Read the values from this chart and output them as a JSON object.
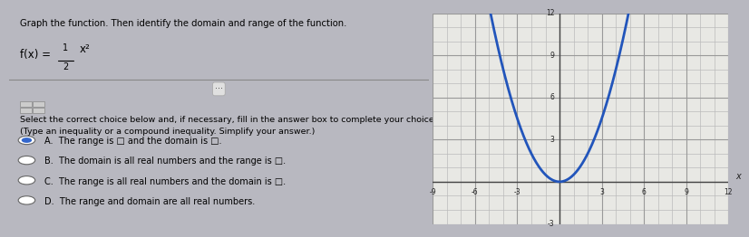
{
  "title_text": "Graph the function. Then identify the domain and range of the function.",
  "func_text1": "f(x) = ",
  "func_frac_num": "1",
  "func_frac_den": "2",
  "func_text2": "x²",
  "instruction_line1": "Select the correct choice below and, if necessary, fill in the answer box to complete your choice.",
  "instruction_line2": "(Type an inequality or a compound inequality. Simplify your answer.)",
  "choices": [
    "A.  The range is □ and the domain is □.",
    "B.  The domain is all real numbers and the range is □.",
    "C.  The range is all real numbers and the domain is □.",
    "D.  The range and domain are all real numbers."
  ],
  "selected_choice": 0,
  "left_bg": "#d4d4d8",
  "right_bg": "#e0e0dc",
  "fig_bg": "#b8b8c0",
  "separator_color": "#888888",
  "graph": {
    "xmin": -9,
    "xmax": 12,
    "ymin": -3,
    "ymax": 12,
    "xticks": [
      -9,
      -6,
      -3,
      3,
      6,
      9,
      12
    ],
    "yticks": [
      -3,
      3,
      6,
      9,
      12
    ],
    "curve_color": "#2255bb",
    "curve_linewidth": 2.0,
    "grid_color": "#bbbbbb",
    "grid_linewidth": 0.5,
    "axis_color": "#444444",
    "background_color": "#e8e8e4"
  }
}
